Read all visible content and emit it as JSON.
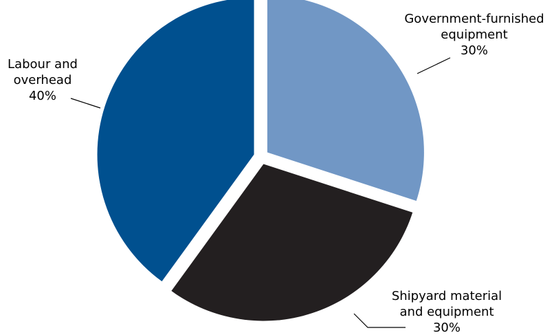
{
  "chart_data": {
    "type": "pie",
    "title": "",
    "slices": [
      {
        "label_lines": [
          "Government-furnished",
          "equipment"
        ],
        "percent_label": "30%",
        "value": 30,
        "color": "#7197c5"
      },
      {
        "label_lines": [
          "Shipyard material",
          "and equipment"
        ],
        "percent_label": "30%",
        "value": 30,
        "color": "#231f20"
      },
      {
        "label_lines": [
          "Labour and",
          "overhead"
        ],
        "percent_label": "40%",
        "value": 40,
        "color": "#00508f"
      }
    ],
    "legend": "none",
    "exploded": true
  }
}
